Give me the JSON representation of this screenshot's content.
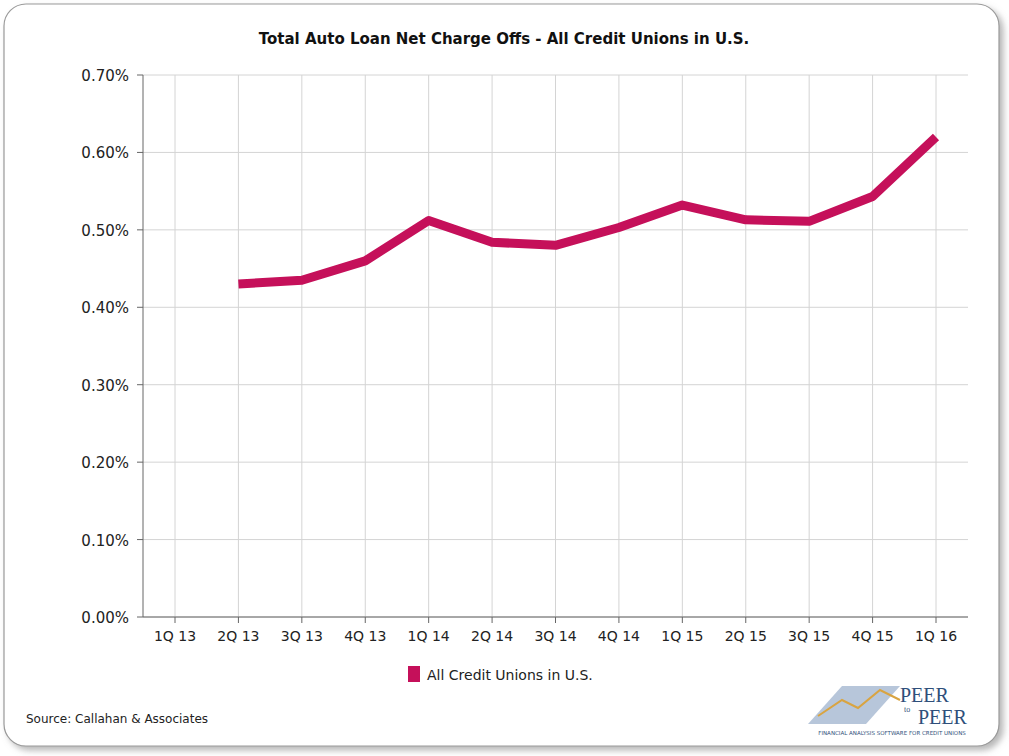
{
  "chart_data": {
    "type": "line",
    "title": "Total Auto Loan Net Charge Offs - All Credit Unions in U.S.",
    "categories": [
      "1Q 13",
      "2Q 13",
      "3Q 13",
      "4Q 13",
      "1Q 14",
      "2Q 14",
      "3Q 14",
      "4Q 14",
      "1Q 15",
      "2Q 15",
      "3Q 15",
      "4Q 15",
      "1Q 16"
    ],
    "series": [
      {
        "name": "All Credit Unions in U.S.",
        "color": "#c5105a",
        "values": [
          null,
          0.43,
          0.435,
          0.46,
          0.512,
          0.484,
          0.48,
          0.503,
          0.532,
          0.513,
          0.511,
          0.543,
          0.62
        ]
      }
    ],
    "ylim": [
      0,
      0.7
    ],
    "yticks": [
      {
        "value": 0,
        "label": "0.00%"
      },
      {
        "value": 0.1,
        "label": "0.10%"
      },
      {
        "value": 0.2,
        "label": "0.20%"
      },
      {
        "value": 0.3,
        "label": "0.30%"
      },
      {
        "value": 0.4,
        "label": "0.40%"
      },
      {
        "value": 0.5,
        "label": "0.50%"
      },
      {
        "value": 0.6,
        "label": "0.60%"
      },
      {
        "value": 0.7,
        "label": "0.70%"
      }
    ],
    "grid": true,
    "legend": "bottom",
    "annotations": [
      "Source: Callahan & Associates",
      "PEER",
      "to",
      "PEER",
      "FINANCIAL ANALYSIS SOFTWARE FOR CREDIT UNIONS"
    ]
  }
}
